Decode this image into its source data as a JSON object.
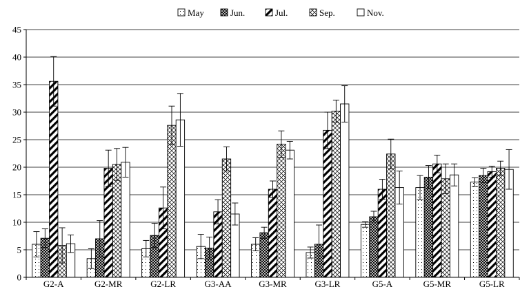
{
  "chart_data": {
    "type": "bar",
    "title": "",
    "xlabel": "",
    "ylabel": "",
    "ylim": [
      0,
      45
    ],
    "yticks": [
      0,
      5,
      10,
      15,
      20,
      25,
      30,
      35,
      40,
      45
    ],
    "grid": true,
    "legend_position": "top",
    "categories": [
      "G2-A",
      "G2-MR",
      "G2-LR",
      "G3-AA",
      "G3-MR",
      "G3-LR",
      "G5-A",
      "G5-MR",
      "G5-LR"
    ],
    "series": [
      {
        "name": "May",
        "pattern": "dots",
        "values": [
          6.0,
          3.4,
          5.2,
          5.6,
          6.0,
          4.5,
          9.6,
          16.3,
          17.3
        ],
        "errors": [
          2.3,
          1.8,
          1.5,
          2.2,
          1.2,
          1.0,
          0.5,
          2.2,
          0.8
        ]
      },
      {
        "name": "Jun.",
        "pattern": "dense-cross",
        "values": [
          7.1,
          7.0,
          7.6,
          5.3,
          8.1,
          6.0,
          11.0,
          18.2,
          18.5
        ],
        "errors": [
          1.7,
          3.3,
          2.2,
          2.0,
          1.0,
          3.5,
          1.0,
          2.1,
          1.3
        ]
      },
      {
        "name": "Jul.",
        "pattern": "diagonal",
        "values": [
          35.6,
          19.8,
          12.6,
          11.9,
          16.0,
          26.7,
          16.0,
          20.6,
          19.2
        ],
        "errors": [
          4.5,
          3.3,
          3.8,
          2.2,
          1.5,
          3.3,
          1.8,
          1.6,
          1.0
        ]
      },
      {
        "name": "Sep.",
        "pattern": "crosshatch",
        "values": [
          5.8,
          20.5,
          27.6,
          21.5,
          24.2,
          30.2,
          22.4,
          17.9,
          19.8
        ],
        "errors": [
          3.2,
          2.9,
          3.5,
          2.2,
          2.4,
          2.0,
          2.7,
          2.7,
          1.3
        ]
      },
      {
        "name": "Nov.",
        "pattern": "blank",
        "values": [
          6.1,
          20.9,
          28.6,
          11.5,
          23.1,
          31.5,
          16.3,
          18.6,
          19.6
        ],
        "errors": [
          1.6,
          2.7,
          4.8,
          2.0,
          1.6,
          3.3,
          3.0,
          2.0,
          3.6
        ]
      }
    ]
  }
}
